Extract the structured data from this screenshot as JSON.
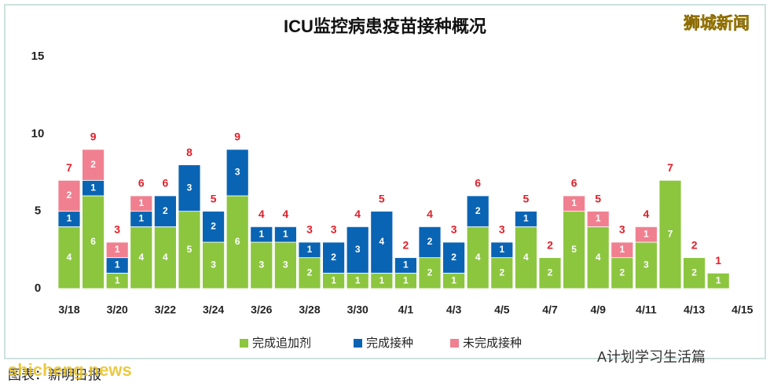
{
  "chart_data": {
    "type": "stacked_bar",
    "title": "ICU监控病患疫苗接种概况",
    "watermark": "狮城新闻",
    "source": "图表：新明日报",
    "footer_left": "shicheng.news",
    "footer_right": "A计划学习生活篇",
    "categories": [
      "3/18",
      null,
      "3/20",
      null,
      "3/22",
      null,
      "3/24",
      null,
      "3/26",
      null,
      "3/28",
      null,
      "3/30",
      null,
      "4/1",
      null,
      "4/3",
      null,
      "4/5",
      null,
      "4/7",
      null,
      "4/9",
      null,
      "4/11",
      null,
      "4/13",
      null,
      "4/15"
    ],
    "series": [
      {
        "name": "完成追加剂",
        "color": "#8cc63f",
        "values": [
          4,
          6,
          1,
          4,
          4,
          5,
          3,
          6,
          3,
          3,
          2,
          1,
          1,
          1,
          1,
          2,
          1,
          4,
          2,
          4,
          2,
          5,
          4,
          2,
          3,
          7,
          2,
          1,
          null
        ]
      },
      {
        "name": "完成接种",
        "color": "#0a64b4",
        "values": [
          1,
          1,
          1,
          1,
          2,
          3,
          2,
          3,
          1,
          1,
          1,
          2,
          3,
          4,
          1,
          2,
          2,
          2,
          1,
          1,
          0,
          0,
          0,
          0,
          0,
          0,
          0,
          0,
          null
        ]
      },
      {
        "name": "未完成接种",
        "color": "#f08090",
        "values": [
          2,
          2,
          1,
          1,
          0,
          0,
          0,
          0,
          0,
          0,
          0,
          0,
          0,
          0,
          0,
          0,
          0,
          0,
          0,
          0,
          0,
          1,
          1,
          1,
          1,
          0,
          0,
          0,
          null
        ]
      }
    ],
    "totals": [
      7,
      9,
      3,
      6,
      6,
      8,
      5,
      9,
      4,
      4,
      3,
      3,
      4,
      5,
      2,
      4,
      3,
      6,
      3,
      5,
      2,
      6,
      5,
      3,
      4,
      7,
      2,
      1,
      null
    ],
    "totals_color": "#e0202a",
    "ylim": [
      0,
      15
    ],
    "yticks": [
      0,
      5,
      10,
      15
    ],
    "grid": false
  }
}
